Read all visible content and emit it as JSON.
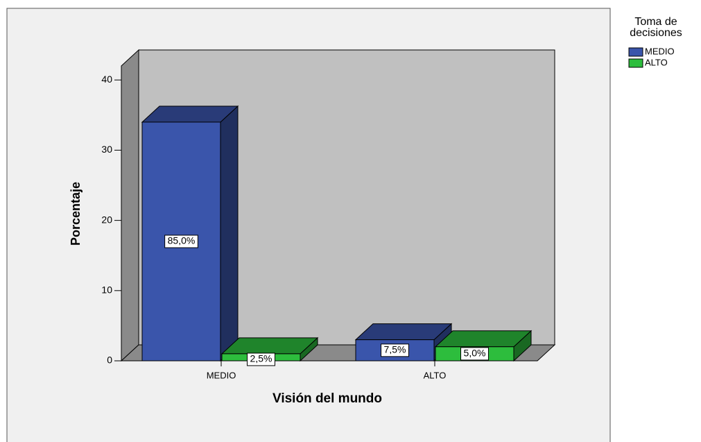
{
  "chart_data": {
    "type": "bar3d",
    "x_label": "Visión del mundo",
    "y_label": "Porcentaje",
    "categories": [
      "MEDIO",
      "ALTO"
    ],
    "legend_title": "Toma de decisiones",
    "series": [
      {
        "name": "MEDIO",
        "color": "#3a55ab",
        "values": [
          34,
          3
        ],
        "value_labels": [
          "85,0%",
          "7,5%"
        ]
      },
      {
        "name": "ALTO",
        "color": "#2dbd3d",
        "values": [
          1,
          2
        ],
        "value_labels": [
          "2,5%",
          "5,0%"
        ]
      }
    ],
    "ylim": [
      0,
      42
    ],
    "yticks": [
      0,
      10,
      20,
      30,
      40
    ],
    "legend": "right"
  }
}
